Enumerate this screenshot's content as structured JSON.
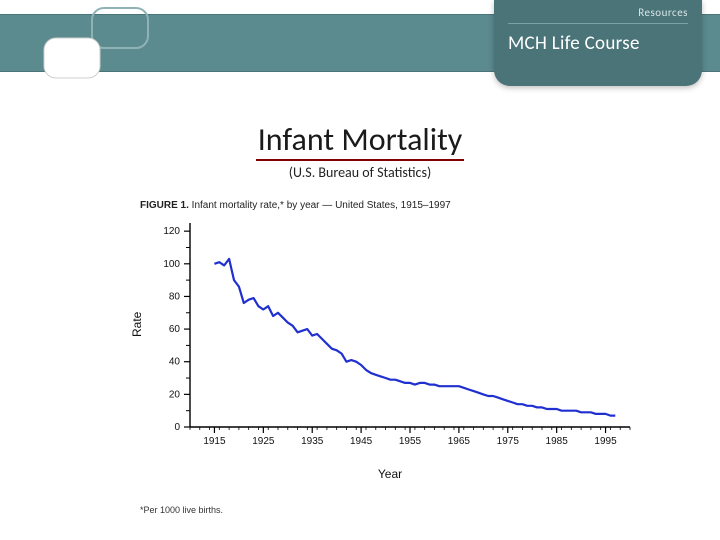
{
  "header": {
    "band_color": "#5b8a8f",
    "badge": {
      "bg_color": "#4a7478",
      "resources_label": "Resources",
      "brand_label": "MCH Life Course"
    },
    "deco": {
      "stroke": "#8fb3b5",
      "box_fill": "#ffffff"
    }
  },
  "slide": {
    "title": "Infant Mortality",
    "title_underline_color": "#800000",
    "subtitle": "(U.S. Bureau of Statistics)"
  },
  "figure": {
    "caption_bold": "FIGURE 1.",
    "caption_rest": " Infant mortality rate,* by year — United States, 1915–1997",
    "footnote": "*Per 1000 live births.",
    "chart": {
      "type": "line",
      "plot_bg": "#ffffff",
      "axis_color": "#000000",
      "line_color": "#2030d0",
      "line_width": 2.2,
      "xlabel": "Year",
      "ylabel": "Rate",
      "label_fontsize": 12,
      "tick_fontsize": 10,
      "xlim": [
        1910,
        2000
      ],
      "ylim": [
        0,
        125
      ],
      "xticks": [
        1915,
        1925,
        1935,
        1945,
        1955,
        1965,
        1975,
        1985,
        1995
      ],
      "yticks": [
        0,
        20,
        40,
        60,
        80,
        100,
        120
      ],
      "minor_x_step": 2,
      "minor_y_step": 10,
      "series": [
        {
          "x": 1915,
          "y": 100
        },
        {
          "x": 1916,
          "y": 101
        },
        {
          "x": 1917,
          "y": 99
        },
        {
          "x": 1918,
          "y": 103
        },
        {
          "x": 1919,
          "y": 90
        },
        {
          "x": 1920,
          "y": 86
        },
        {
          "x": 1921,
          "y": 76
        },
        {
          "x": 1922,
          "y": 78
        },
        {
          "x": 1923,
          "y": 79
        },
        {
          "x": 1924,
          "y": 74
        },
        {
          "x": 1925,
          "y": 72
        },
        {
          "x": 1926,
          "y": 74
        },
        {
          "x": 1927,
          "y": 68
        },
        {
          "x": 1928,
          "y": 70
        },
        {
          "x": 1929,
          "y": 67
        },
        {
          "x": 1930,
          "y": 64
        },
        {
          "x": 1931,
          "y": 62
        },
        {
          "x": 1932,
          "y": 58
        },
        {
          "x": 1933,
          "y": 59
        },
        {
          "x": 1934,
          "y": 60
        },
        {
          "x": 1935,
          "y": 56
        },
        {
          "x": 1936,
          "y": 57
        },
        {
          "x": 1937,
          "y": 54
        },
        {
          "x": 1938,
          "y": 51
        },
        {
          "x": 1939,
          "y": 48
        },
        {
          "x": 1940,
          "y": 47
        },
        {
          "x": 1941,
          "y": 45
        },
        {
          "x": 1942,
          "y": 40
        },
        {
          "x": 1943,
          "y": 41
        },
        {
          "x": 1944,
          "y": 40
        },
        {
          "x": 1945,
          "y": 38
        },
        {
          "x": 1946,
          "y": 35
        },
        {
          "x": 1947,
          "y": 33
        },
        {
          "x": 1948,
          "y": 32
        },
        {
          "x": 1949,
          "y": 31
        },
        {
          "x": 1950,
          "y": 30
        },
        {
          "x": 1951,
          "y": 29
        },
        {
          "x": 1952,
          "y": 29
        },
        {
          "x": 1953,
          "y": 28
        },
        {
          "x": 1954,
          "y": 27
        },
        {
          "x": 1955,
          "y": 27
        },
        {
          "x": 1956,
          "y": 26
        },
        {
          "x": 1957,
          "y": 27
        },
        {
          "x": 1958,
          "y": 27
        },
        {
          "x": 1959,
          "y": 26
        },
        {
          "x": 1960,
          "y": 26
        },
        {
          "x": 1961,
          "y": 25
        },
        {
          "x": 1962,
          "y": 25
        },
        {
          "x": 1963,
          "y": 25
        },
        {
          "x": 1964,
          "y": 25
        },
        {
          "x": 1965,
          "y": 25
        },
        {
          "x": 1966,
          "y": 24
        },
        {
          "x": 1967,
          "y": 23
        },
        {
          "x": 1968,
          "y": 22
        },
        {
          "x": 1969,
          "y": 21
        },
        {
          "x": 1970,
          "y": 20
        },
        {
          "x": 1971,
          "y": 19
        },
        {
          "x": 1972,
          "y": 19
        },
        {
          "x": 1973,
          "y": 18
        },
        {
          "x": 1974,
          "y": 17
        },
        {
          "x": 1975,
          "y": 16
        },
        {
          "x": 1976,
          "y": 15
        },
        {
          "x": 1977,
          "y": 14
        },
        {
          "x": 1978,
          "y": 14
        },
        {
          "x": 1979,
          "y": 13
        },
        {
          "x": 1980,
          "y": 13
        },
        {
          "x": 1981,
          "y": 12
        },
        {
          "x": 1982,
          "y": 12
        },
        {
          "x": 1983,
          "y": 11
        },
        {
          "x": 1984,
          "y": 11
        },
        {
          "x": 1985,
          "y": 11
        },
        {
          "x": 1986,
          "y": 10
        },
        {
          "x": 1987,
          "y": 10
        },
        {
          "x": 1988,
          "y": 10
        },
        {
          "x": 1989,
          "y": 10
        },
        {
          "x": 1990,
          "y": 9
        },
        {
          "x": 1991,
          "y": 9
        },
        {
          "x": 1992,
          "y": 9
        },
        {
          "x": 1993,
          "y": 8
        },
        {
          "x": 1994,
          "y": 8
        },
        {
          "x": 1995,
          "y": 8
        },
        {
          "x": 1996,
          "y": 7
        },
        {
          "x": 1997,
          "y": 7
        }
      ]
    }
  }
}
